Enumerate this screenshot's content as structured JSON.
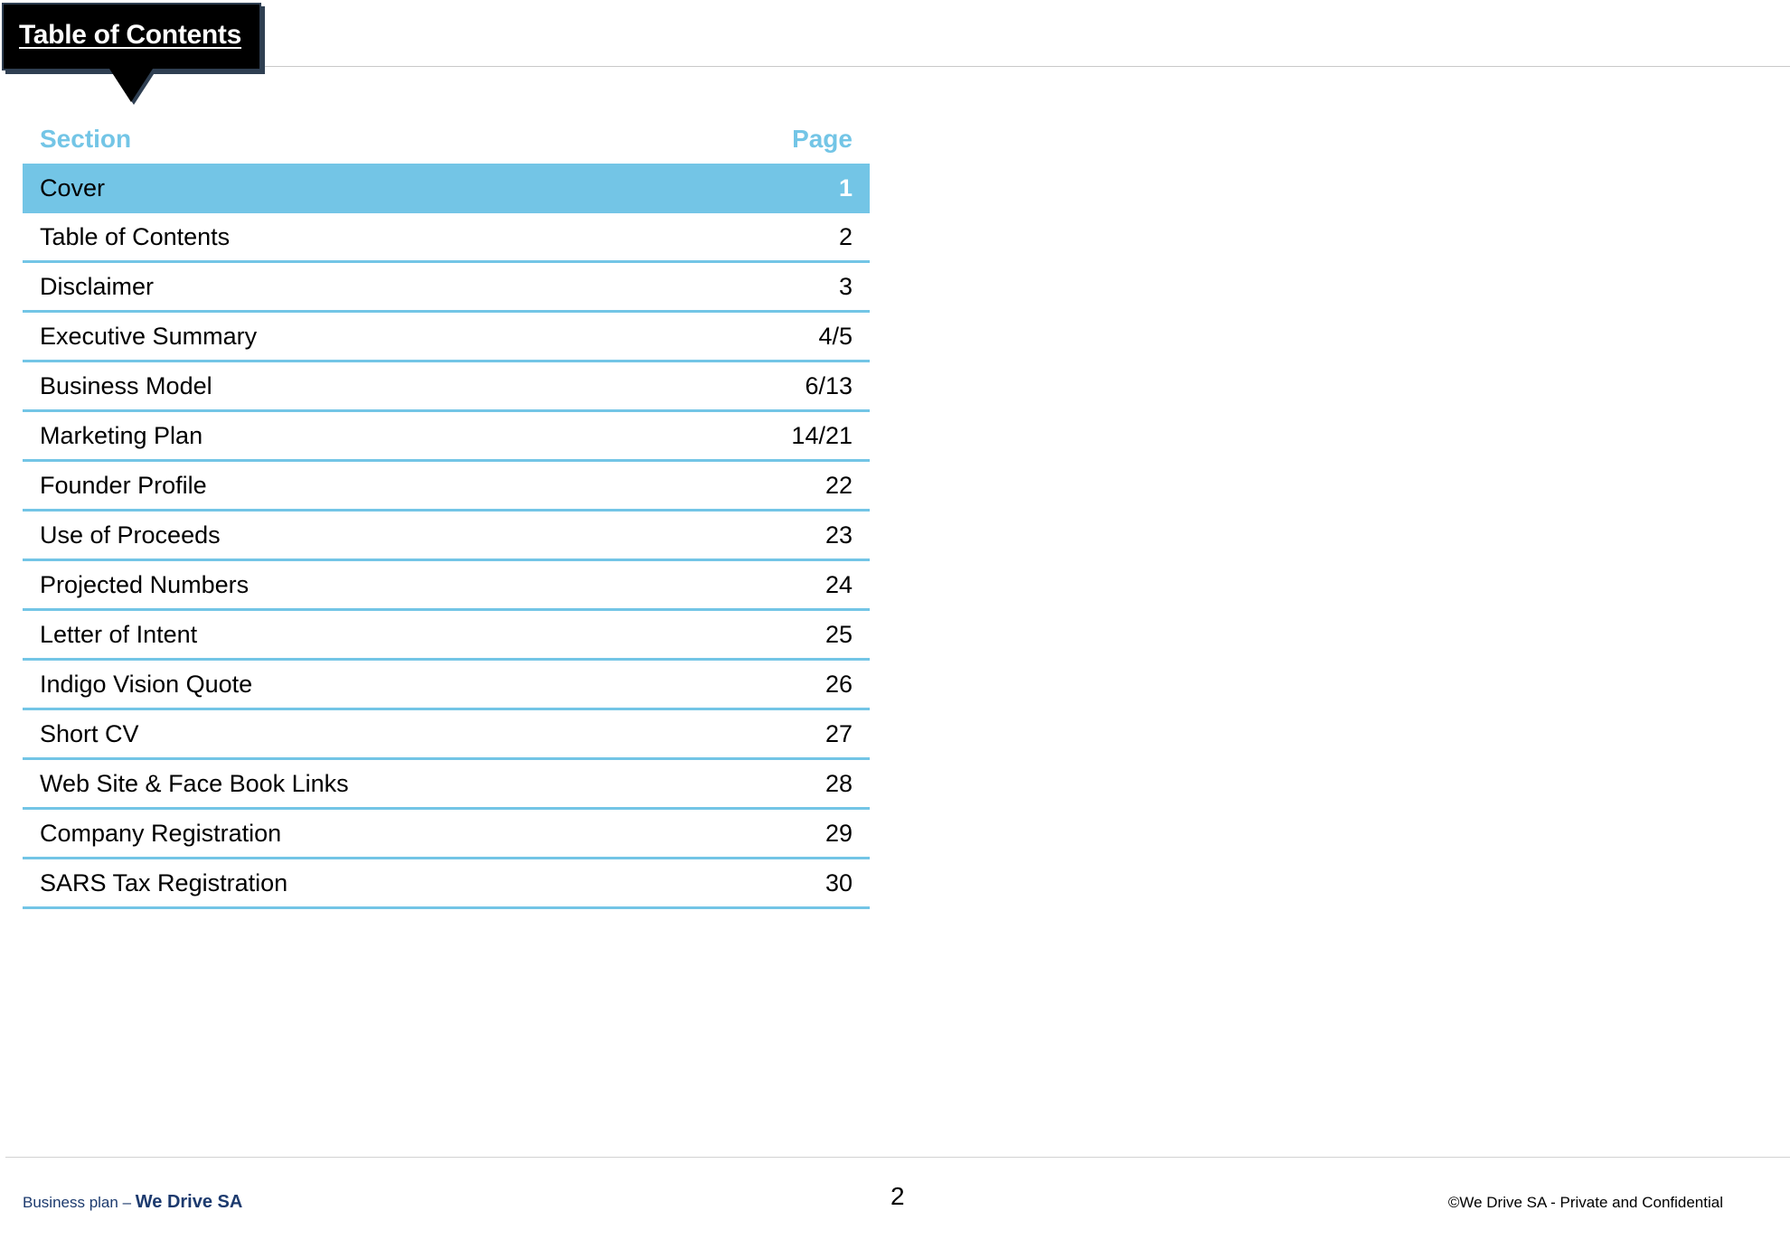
{
  "header": {
    "title": "Table of Contents"
  },
  "toc": {
    "section_header": "Section",
    "page_header": "Page",
    "rows": [
      {
        "section": "Cover",
        "page": "1"
      },
      {
        "section": "Table of Contents",
        "page": "2"
      },
      {
        "section": "Disclaimer",
        "page": "3"
      },
      {
        "section": "Executive Summary",
        "page": "4/5"
      },
      {
        "section": "Business Model",
        "page": "6/13"
      },
      {
        "section": "Marketing Plan",
        "page": "14/21"
      },
      {
        "section": "Founder Profile",
        "page": "22"
      },
      {
        "section": "Use of Proceeds",
        "page": "23"
      },
      {
        "section": "Projected Numbers",
        "page": "24"
      },
      {
        "section": "Letter of Intent",
        "page": "25"
      },
      {
        "section": "Indigo Vision Quote",
        "page": "26"
      },
      {
        "section": "Short CV",
        "page": "27"
      },
      {
        "section": "Web Site & Face Book Links",
        "page": "28"
      },
      {
        "section": "Company Registration",
        "page": "29"
      },
      {
        "section": "SARS Tax Registration",
        "page": "30"
      }
    ]
  },
  "footer": {
    "left_prefix": "Business plan – ",
    "left_brand": "We Drive SA",
    "page_number": "2",
    "right_text": "©We Drive SA - Private and Confidential"
  },
  "colors": {
    "accent": "#73c5e6",
    "title_bg": "#000000",
    "footer_brand": "#1c3a6e"
  }
}
